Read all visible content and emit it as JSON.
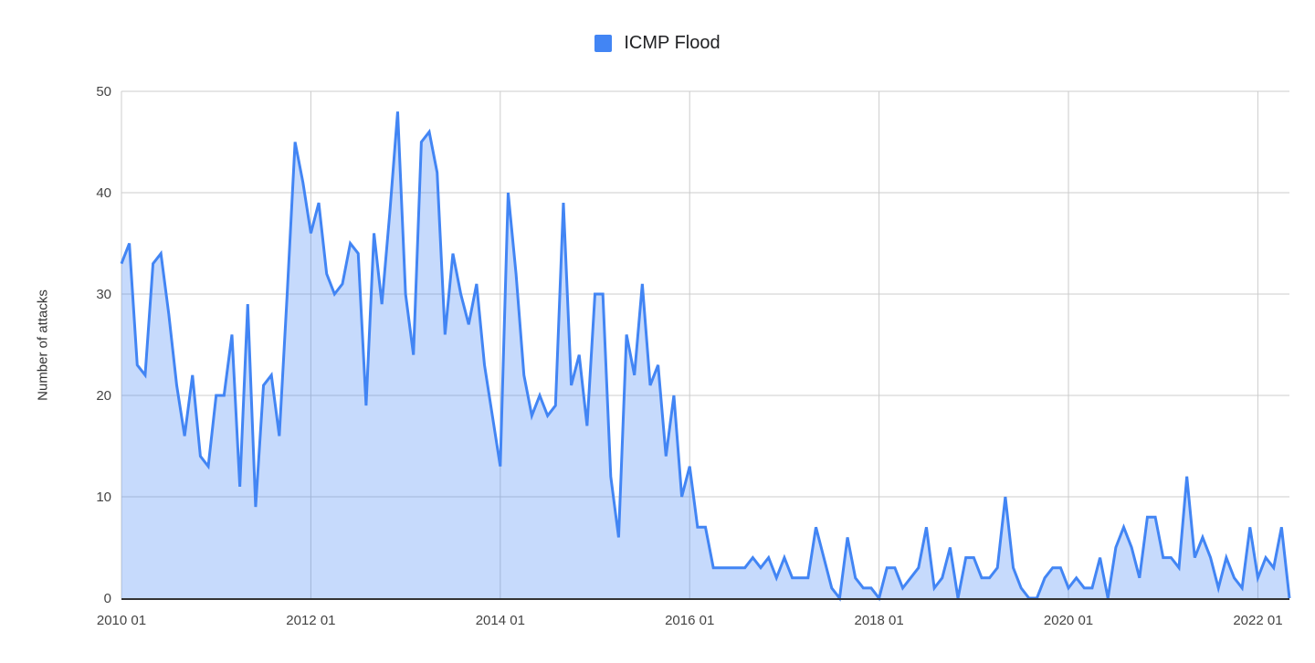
{
  "styles": {
    "background": "#ffffff",
    "grid_color": "#cccccc",
    "axis_line_color": "#333333",
    "axis_text_color": "#444444",
    "legend_text_color": "#202124"
  },
  "chart_data": {
    "type": "area",
    "title": "",
    "xlabel": "",
    "ylabel": "Number of attacks",
    "grid": true,
    "legend": {
      "position": "top",
      "entries": [
        {
          "label": "ICMP Flood",
          "color": "#4285f4"
        }
      ]
    },
    "ylim": [
      0,
      50
    ],
    "yticks": [
      0,
      10,
      20,
      30,
      40,
      50
    ],
    "xticks": [
      {
        "label": "2010 01",
        "month_index": 0
      },
      {
        "label": "2012 01",
        "month_index": 24
      },
      {
        "label": "2014 01",
        "month_index": 48
      },
      {
        "label": "2016 01",
        "month_index": 72
      },
      {
        "label": "2018 01",
        "month_index": 96
      },
      {
        "label": "2020 01",
        "month_index": 120
      },
      {
        "label": "2022 01",
        "month_index": 144
      }
    ],
    "x": [
      "2010-01",
      "2010-02",
      "2010-03",
      "2010-04",
      "2010-05",
      "2010-06",
      "2010-07",
      "2010-08",
      "2010-09",
      "2010-10",
      "2010-11",
      "2010-12",
      "2011-01",
      "2011-02",
      "2011-03",
      "2011-04",
      "2011-05",
      "2011-06",
      "2011-07",
      "2011-08",
      "2011-09",
      "2011-10",
      "2011-11",
      "2011-12",
      "2012-01",
      "2012-02",
      "2012-03",
      "2012-04",
      "2012-05",
      "2012-06",
      "2012-07",
      "2012-08",
      "2012-09",
      "2012-10",
      "2012-11",
      "2012-12",
      "2013-01",
      "2013-02",
      "2013-03",
      "2013-04",
      "2013-05",
      "2013-06",
      "2013-07",
      "2013-08",
      "2013-09",
      "2013-10",
      "2013-11",
      "2013-12",
      "2014-01",
      "2014-02",
      "2014-03",
      "2014-04",
      "2014-05",
      "2014-06",
      "2014-07",
      "2014-08",
      "2014-09",
      "2014-10",
      "2014-11",
      "2014-12",
      "2015-01",
      "2015-02",
      "2015-03",
      "2015-04",
      "2015-05",
      "2015-06",
      "2015-07",
      "2015-08",
      "2015-09",
      "2015-10",
      "2015-11",
      "2015-12",
      "2016-01",
      "2016-02",
      "2016-03",
      "2016-04",
      "2016-05",
      "2016-06",
      "2016-07",
      "2016-08",
      "2016-09",
      "2016-10",
      "2016-11",
      "2016-12",
      "2017-01",
      "2017-02",
      "2017-03",
      "2017-04",
      "2017-05",
      "2017-06",
      "2017-07",
      "2017-08",
      "2017-09",
      "2017-10",
      "2017-11",
      "2017-12",
      "2018-01",
      "2018-02",
      "2018-03",
      "2018-04",
      "2018-05",
      "2018-06",
      "2018-07",
      "2018-08",
      "2018-09",
      "2018-10",
      "2018-11",
      "2018-12",
      "2019-01",
      "2019-02",
      "2019-03",
      "2019-04",
      "2019-05",
      "2019-06",
      "2019-07",
      "2019-08",
      "2019-09",
      "2019-10",
      "2019-11",
      "2019-12",
      "2020-01",
      "2020-02",
      "2020-03",
      "2020-04",
      "2020-05",
      "2020-06",
      "2020-07",
      "2020-08",
      "2020-09",
      "2020-10",
      "2020-11",
      "2020-12",
      "2021-01",
      "2021-02",
      "2021-03",
      "2021-04",
      "2021-05",
      "2021-06",
      "2021-07",
      "2021-08",
      "2021-09",
      "2021-10",
      "2021-11",
      "2021-12",
      "2022-01",
      "2022-02",
      "2022-03",
      "2022-04",
      "2022-05"
    ],
    "series": [
      {
        "name": "ICMP Flood",
        "color": "#4285f4",
        "fill": "rgba(66,133,244,0.3)",
        "values": [
          33,
          35,
          23,
          22,
          33,
          34,
          28,
          21,
          16,
          22,
          14,
          13,
          20,
          20,
          26,
          11,
          29,
          9,
          21,
          22,
          16,
          30,
          45,
          41,
          36,
          39,
          32,
          30,
          31,
          35,
          34,
          19,
          36,
          29,
          38,
          48,
          30,
          24,
          45,
          46,
          42,
          26,
          34,
          30,
          27,
          31,
          23,
          18,
          13,
          40,
          32,
          22,
          18,
          20,
          18,
          19,
          39,
          21,
          24,
          17,
          30,
          30,
          12,
          6,
          26,
          22,
          31,
          21,
          23,
          14,
          20,
          10,
          13,
          7,
          7,
          3,
          3,
          3,
          3,
          3,
          4,
          3,
          4,
          2,
          4,
          2,
          2,
          2,
          7,
          4,
          1,
          0,
          6,
          2,
          1,
          1,
          0,
          3,
          3,
          1,
          2,
          3,
          7,
          1,
          2,
          5,
          0,
          4,
          4,
          2,
          2,
          3,
          10,
          3,
          1,
          0,
          0,
          2,
          3,
          3,
          1,
          2,
          1,
          1,
          4,
          0,
          5,
          7,
          5,
          2,
          8,
          8,
          4,
          4,
          3,
          12,
          4,
          6,
          4,
          1,
          4,
          2,
          1,
          7,
          2,
          4,
          3,
          7,
          0
        ]
      }
    ]
  }
}
